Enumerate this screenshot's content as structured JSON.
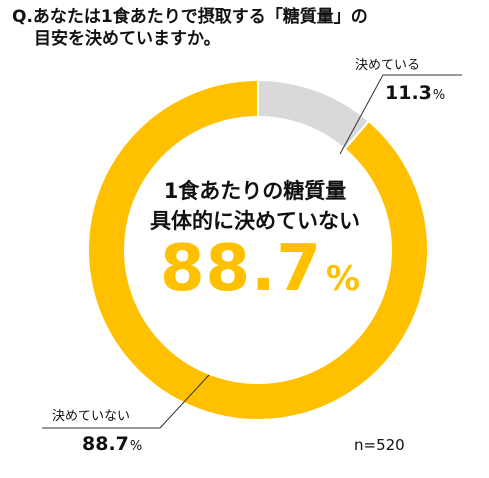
{
  "question": {
    "line1": "Q.あなたは1食あたりで摂取する「糖質量」の",
    "line2": "目安を決めていますか。"
  },
  "center": {
    "line1": "1食あたりの糖質量",
    "line2": "具体的に決めていない",
    "value": "88.7",
    "unit": "%"
  },
  "labels": {
    "decided_name": "決めている",
    "decided_value": "11.3",
    "not_decided_name": "決めていない",
    "not_decided_value": "88.7",
    "unit": "%"
  },
  "sample_size": "n=520",
  "chart_data": {
    "type": "pie",
    "variant": "donut",
    "categories": [
      "決めている",
      "決めていない"
    ],
    "values": [
      11.3,
      88.7
    ],
    "colors": [
      "#D9D9D9",
      "#FFC000"
    ],
    "title": "Q.あなたは1食あたりで摂取する「糖質量」の目安を決めていますか。"
  }
}
